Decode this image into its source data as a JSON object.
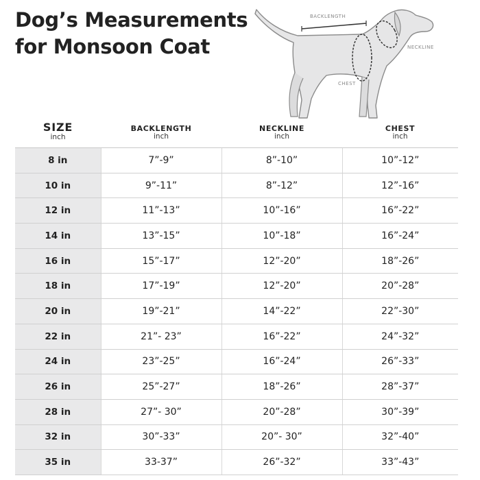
{
  "title_line1": "Dog’s Measurements",
  "title_line2": "for Monsoon Coat",
  "diagram_labels": {
    "backlength": "BACKLENGTH",
    "neckline": "NECKLINE",
    "chest": "CHEST"
  },
  "headers": {
    "size": "SIZE",
    "backlength": "BACKLENGTH",
    "neckline": "NECKLINE",
    "chest": "CHEST",
    "unit": "inch"
  },
  "rows": [
    {
      "size": "8 in",
      "backlength": "7”-9”",
      "neckline": "8”-10”",
      "chest": "10”-12”"
    },
    {
      "size": "10 in",
      "backlength": "9”-11”",
      "neckline": "8”-12”",
      "chest": "12”-16”"
    },
    {
      "size": "12 in",
      "backlength": "11”-13”",
      "neckline": "10”-16”",
      "chest": "16”-22”"
    },
    {
      "size": "14 in",
      "backlength": "13”-15”",
      "neckline": "10”-18”",
      "chest": "16”-24”"
    },
    {
      "size": "16 in",
      "backlength": "15”-17”",
      "neckline": "12”-20”",
      "chest": "18”-26”"
    },
    {
      "size": "18 in",
      "backlength": "17”-19”",
      "neckline": "12”-20”",
      "chest": "20”-28”"
    },
    {
      "size": "20 in",
      "backlength": "19”-21”",
      "neckline": "14”-22”",
      "chest": "22”-30”"
    },
    {
      "size": "22 in",
      "backlength": "21”- 23”",
      "neckline": "16”-22”",
      "chest": "24”-32”"
    },
    {
      "size": "24 in",
      "backlength": "23”-25”",
      "neckline": "16”-24”",
      "chest": "26”-33”"
    },
    {
      "size": "26 in",
      "backlength": "25”-27”",
      "neckline": "18”-26”",
      "chest": "28”-37”"
    },
    {
      "size": "28 in",
      "backlength": "27”- 30”",
      "neckline": "20”-28”",
      "chest": "30”-39”"
    },
    {
      "size": "32 in",
      "backlength": "30”-33”",
      "neckline": "20”- 30”",
      "chest": "32”-40”"
    },
    {
      "size": "35 in",
      "backlength": "33-37”",
      "neckline": "26”-32”",
      "chest": "33”-43”"
    }
  ]
}
